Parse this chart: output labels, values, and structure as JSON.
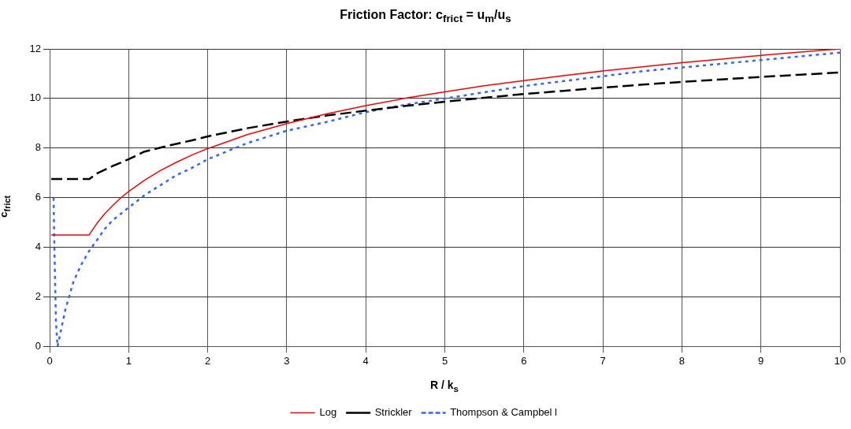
{
  "chart_data": {
    "type": "line",
    "title": "Friction Factor:  c$_{frict}$ = u$_{m}$/u$_{s}$",
    "xlabel": "R / k$_{s}$",
    "ylabel": "c$_{frict}$",
    "xlim": [
      0,
      10
    ],
    "xticks": [
      0,
      1,
      2,
      3,
      4,
      5,
      6,
      7,
      8,
      9,
      10
    ],
    "ylim": [
      0,
      12
    ],
    "yticks": [
      0,
      2,
      4,
      6,
      8,
      10,
      12
    ],
    "grid": true,
    "legend": "bottom",
    "marker": "none",
    "series": [
      {
        "name": "Log",
        "color": "#ff0000",
        "line_style": "solid",
        "x": [
          0.02,
          0.5,
          0.6,
          0.7,
          0.8,
          0.9,
          1,
          1.2,
          1.4,
          1.6,
          1.8,
          2,
          2.5,
          3,
          3.5,
          4,
          4.5,
          5,
          5.5,
          6,
          6.5,
          7,
          7.5,
          8,
          8.5,
          9,
          9.5,
          10
        ],
        "values": [
          4.5,
          4.5,
          4.97,
          5.36,
          5.69,
          5.99,
          6.25,
          6.7,
          7.09,
          7.42,
          7.72,
          7.98,
          8.54,
          8.99,
          9.38,
          9.71,
          10.01,
          10.27,
          10.51,
          10.72,
          10.92,
          11.11,
          11.28,
          11.44,
          11.59,
          11.74,
          11.87,
          12
        ]
      },
      {
        "name": "Strickler",
        "color": "#000000",
        "line_style": "dashed",
        "x": [
          0.02,
          0.5,
          0.6,
          0.8,
          1,
          1.2,
          1.4,
          1.6,
          1.8,
          2,
          2.5,
          3,
          3.5,
          4,
          4.5,
          5,
          5.5,
          6,
          6.5,
          7,
          7.5,
          8,
          8.5,
          9,
          9.5,
          10
        ],
        "values": [
          6.75,
          6.75,
          6.98,
          7.28,
          7.55,
          7.86,
          8.02,
          8.17,
          8.31,
          8.47,
          8.8,
          9.07,
          9.31,
          9.51,
          9.7,
          9.87,
          10.03,
          10.18,
          10.31,
          10.44,
          10.56,
          10.67,
          10.77,
          10.87,
          10.96,
          11.05
        ]
      },
      {
        "name": "Thompson & Campbel l",
        "color": "#3366ff",
        "line_style": "dotted",
        "x": [
          0.05,
          0.06,
          0.08,
          0.1,
          0.2,
          0.3,
          0.4,
          0.5,
          0.6,
          0.7,
          0.8,
          0.9,
          1,
          1.2,
          1.4,
          1.6,
          1.8,
          2,
          2.5,
          3,
          3.5,
          4,
          4.5,
          5,
          5.5,
          6,
          6.5,
          7,
          7.5,
          8,
          8.5,
          9,
          9.5,
          10
        ],
        "values": [
          6,
          4,
          1,
          0,
          1.5,
          2.6,
          3.3,
          3.85,
          4.3,
          4.75,
          5.1,
          5.35,
          5.6,
          6.1,
          6.5,
          6.9,
          7.2,
          7.55,
          8.2,
          8.7,
          9.05,
          9.45,
          9.75,
          10,
          10.25,
          10.5,
          10.7,
          10.9,
          11.1,
          11.25,
          11.4,
          11.55,
          11.7,
          11.85
        ]
      }
    ]
  }
}
